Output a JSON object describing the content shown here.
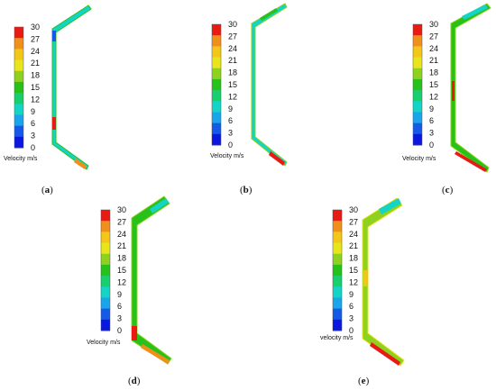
{
  "legend": {
    "ticks": [
      "30",
      "27",
      "24",
      "21",
      "18",
      "15",
      "12",
      "9",
      "6",
      "3",
      "0"
    ],
    "colors": [
      "#e81a14",
      "#f18f1c",
      "#f3c718",
      "#e8e61a",
      "#8ed11f",
      "#27c11a",
      "#18cf6e",
      "#14d4c6",
      "#1aa4ea",
      "#1459e8",
      "#0a17e0"
    ]
  },
  "panels": [
    {
      "id": "a",
      "label": "a",
      "caption": "Velocity m/s"
    },
    {
      "id": "b",
      "label": "b",
      "caption": "Velocity m/s"
    },
    {
      "id": "c",
      "label": "c",
      "caption": "Velocity m/s"
    },
    {
      "id": "d",
      "label": "d",
      "caption": "Velocity m/s"
    },
    {
      "id": "e",
      "label": "e",
      "caption": "velocity m/s"
    }
  ]
}
